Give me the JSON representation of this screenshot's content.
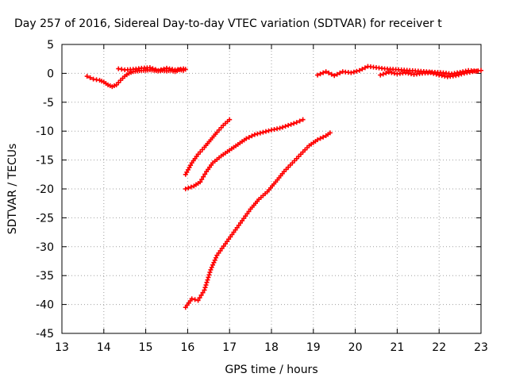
{
  "chart_data": {
    "type": "scatter",
    "title": "Day 257 of 2016, Sidereal Day-to-day VTEC variation (SDTVAR) for receiver t",
    "xlabel": "GPS time / hours",
    "ylabel": "SDTVAR / TECUs",
    "xlim": [
      13,
      23
    ],
    "ylim": [
      -45,
      5
    ],
    "xticks": [
      "13",
      "14",
      "15",
      "16",
      "17",
      "18",
      "19",
      "20",
      "21",
      "22",
      "23"
    ],
    "yticks": [
      "5",
      "0",
      "-5",
      "-10",
      "-15",
      "-20",
      "-25",
      "-30",
      "-35",
      "-40",
      "-45"
    ],
    "grid": true,
    "marker": "plus",
    "series_color": "#ff0000",
    "series": [
      {
        "x": [
          13.6,
          13.75,
          13.9,
          14.0,
          14.1,
          14.2,
          14.3,
          14.4,
          14.5,
          14.6,
          14.7,
          14.8,
          14.9,
          15.0,
          15.1,
          15.2,
          15.3,
          15.4,
          15.5,
          15.6,
          15.7,
          15.8,
          15.9,
          15.95
        ],
        "y": [
          -0.5,
          -1.0,
          -1.2,
          -1.5,
          -2.0,
          -2.3,
          -2.0,
          -1.2,
          -0.5,
          0.0,
          0.3,
          0.4,
          0.5,
          0.5,
          0.6,
          0.5,
          0.4,
          0.5,
          0.4,
          0.5,
          0.3,
          0.6,
          0.5,
          0.7
        ]
      },
      {
        "x": [
          14.35,
          14.5,
          14.7,
          14.9,
          15.1,
          15.3,
          15.5,
          15.7,
          15.9
        ],
        "y": [
          0.8,
          0.6,
          0.7,
          0.9,
          1.0,
          0.5,
          0.9,
          0.6,
          0.8
        ]
      },
      {
        "x": [
          15.95,
          16.1,
          16.25,
          16.4,
          16.55,
          16.7,
          16.85,
          17.0
        ],
        "y": [
          -17.5,
          -15.5,
          -14.0,
          -12.8,
          -11.5,
          -10.2,
          -9.0,
          -8.0
        ]
      },
      {
        "x": [
          15.95,
          16.15,
          16.3,
          16.45,
          16.6,
          16.8,
          17.0,
          17.2,
          17.4,
          17.6,
          17.8,
          18.0,
          18.2,
          18.4,
          18.6,
          18.75
        ],
        "y": [
          -20.0,
          -19.5,
          -18.8,
          -17.0,
          -15.5,
          -14.3,
          -13.3,
          -12.3,
          -11.3,
          -10.6,
          -10.2,
          -9.8,
          -9.5,
          -9.0,
          -8.5,
          -8.0
        ]
      },
      {
        "x": [
          15.95,
          16.1,
          16.25,
          16.4,
          16.55,
          16.7,
          16.9,
          17.1,
          17.3,
          17.5,
          17.7,
          17.9,
          18.1,
          18.3,
          18.5,
          18.7,
          18.9,
          19.1,
          19.3,
          19.4
        ],
        "y": [
          -40.5,
          -39.0,
          -39.3,
          -37.5,
          -34.0,
          -31.5,
          -29.5,
          -27.5,
          -25.5,
          -23.5,
          -21.8,
          -20.5,
          -18.8,
          -17.0,
          -15.5,
          -14.0,
          -12.5,
          -11.5,
          -10.8,
          -10.3
        ]
      },
      {
        "x": [
          19.1,
          19.3,
          19.5,
          19.7,
          19.9,
          20.1,
          20.3,
          20.5,
          20.7,
          20.9,
          21.1,
          21.3,
          21.5,
          21.7,
          21.9,
          22.1,
          22.3,
          22.5,
          22.7,
          22.9
        ],
        "y": [
          -0.3,
          0.3,
          -0.4,
          0.3,
          0.1,
          0.5,
          1.2,
          1.0,
          0.8,
          0.7,
          0.6,
          0.5,
          0.4,
          0.3,
          0.2,
          0.1,
          -0.1,
          0.2,
          0.5,
          0.4
        ]
      },
      {
        "x": [
          20.6,
          20.8,
          21.0,
          21.2,
          21.4,
          21.6,
          21.8,
          22.0,
          22.2,
          22.4,
          22.6,
          22.8,
          23.0
        ],
        "y": [
          -0.3,
          0.2,
          -0.1,
          0.1,
          -0.2,
          0.0,
          0.1,
          -0.3,
          -0.6,
          -0.4,
          0.0,
          0.3,
          0.5
        ]
      }
    ]
  }
}
